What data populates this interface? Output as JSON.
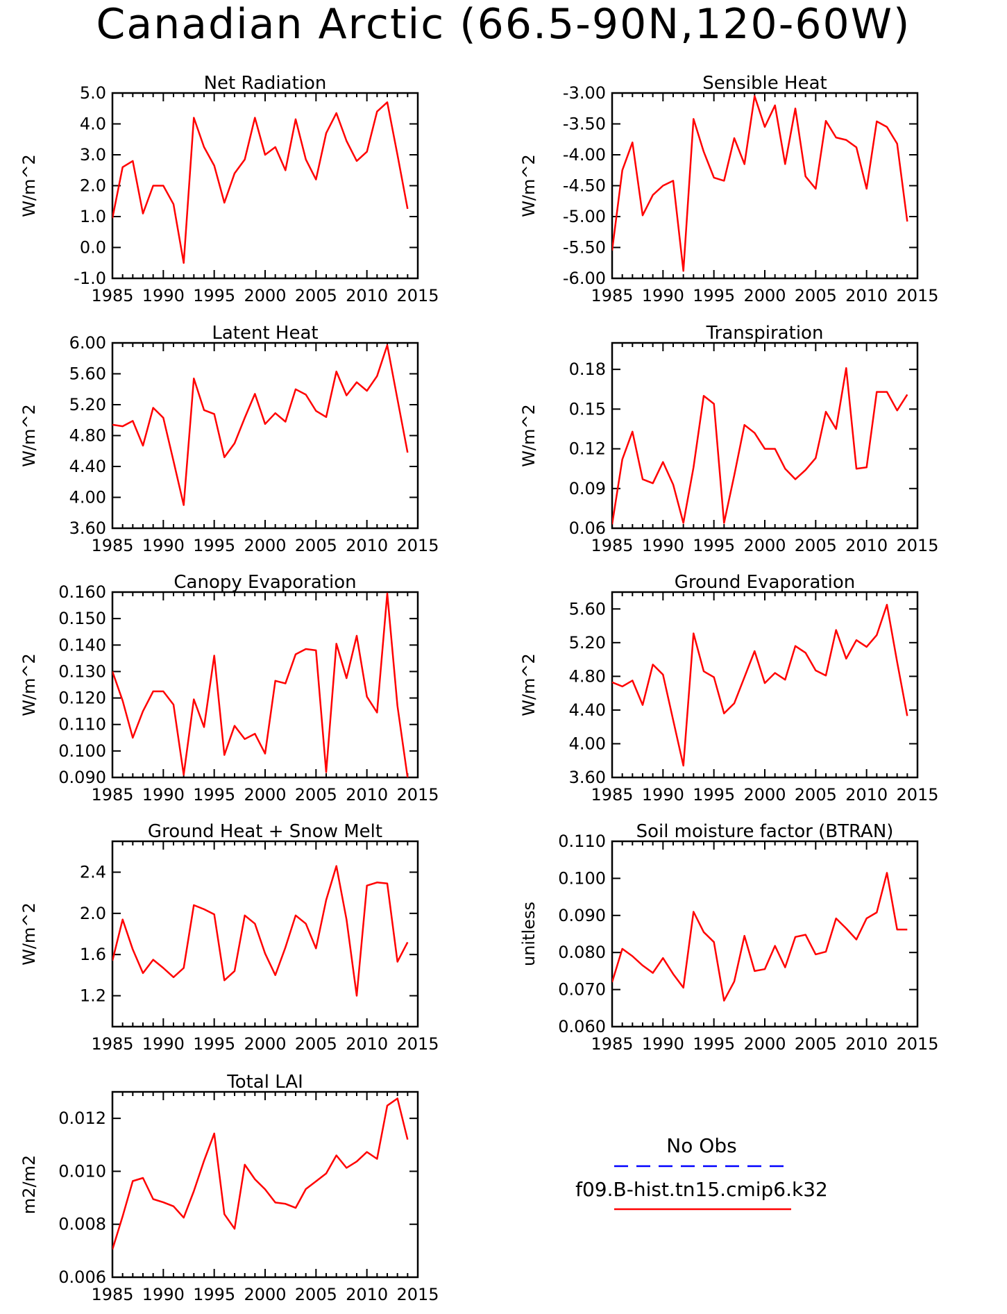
{
  "page_title": "Canadian Arctic (66.5-90N,120-60W)",
  "colors": {
    "model_line": "#ff0000",
    "obs_line": "#0000ff",
    "axis": "#000000"
  },
  "legend": {
    "entries": [
      {
        "label": "No Obs",
        "color": "#0000ff",
        "style": "dashed"
      },
      {
        "label": "f09.B-hist.tn15.cmip6.k32",
        "color": "#ff0000",
        "style": "solid"
      }
    ]
  },
  "chart_data": [
    {
      "type": "line",
      "title": "Net Radiation",
      "ylabel": "W/m^2",
      "xlim": [
        1985,
        2015
      ],
      "ylim": [
        -1.0,
        5.0
      ],
      "xticks": [
        1985,
        1990,
        1995,
        2000,
        2005,
        2010,
        2015
      ],
      "yticks": [
        "-1.0",
        "0.0",
        "1.0",
        "2.0",
        "3.0",
        "4.0",
        "5.0"
      ],
      "series": [
        {
          "x": [
            1985,
            1986,
            1987,
            1988,
            1989,
            1990,
            1991,
            1992,
            1993,
            1994,
            1995,
            1996,
            1997,
            1998,
            1999,
            2000,
            2001,
            2002,
            2003,
            2004,
            2005,
            2006,
            2007,
            2008,
            2009,
            2010,
            2011,
            2012,
            2013,
            2014
          ],
          "y": [
            0.95,
            2.6,
            2.8,
            1.1,
            2.0,
            2.0,
            1.4,
            -0.5,
            4.2,
            3.25,
            2.65,
            1.45,
            2.4,
            2.85,
            4.2,
            3.0,
            3.25,
            2.5,
            4.15,
            2.85,
            2.2,
            3.7,
            4.35,
            3.45,
            2.8,
            3.1,
            4.4,
            4.7,
            3.0,
            1.25
          ]
        }
      ]
    },
    {
      "type": "line",
      "title": "Sensible Heat",
      "ylabel": "W/m^2",
      "xlim": [
        1985,
        2015
      ],
      "ylim": [
        -6.0,
        -3.0
      ],
      "xticks": [
        1985,
        1990,
        1995,
        2000,
        2005,
        2010,
        2015
      ],
      "yticks": [
        "-6.00",
        "-5.50",
        "-5.00",
        "-4.50",
        "-4.00",
        "-3.50",
        "-3.00"
      ],
      "series": [
        {
          "x": [
            1985,
            1986,
            1987,
            1988,
            1989,
            1990,
            1991,
            1992,
            1993,
            1994,
            1995,
            1996,
            1997,
            1998,
            1999,
            2000,
            2001,
            2002,
            2003,
            2004,
            2005,
            2006,
            2007,
            2008,
            2009,
            2010,
            2011,
            2012,
            2013,
            2014
          ],
          "y": [
            -5.55,
            -4.25,
            -3.8,
            -4.98,
            -4.65,
            -4.5,
            -4.42,
            -5.88,
            -3.42,
            -3.95,
            -4.37,
            -4.42,
            -3.73,
            -4.15,
            -3.05,
            -3.55,
            -3.2,
            -4.15,
            -3.25,
            -4.35,
            -4.55,
            -3.45,
            -3.72,
            -3.76,
            -3.88,
            -4.55,
            -3.46,
            -3.55,
            -3.82,
            -5.08
          ]
        }
      ]
    },
    {
      "type": "line",
      "title": "Latent Heat",
      "ylabel": "W/m^2",
      "xlim": [
        1985,
        2015
      ],
      "ylim": [
        3.6,
        6.0
      ],
      "xticks": [
        1985,
        1990,
        1995,
        2000,
        2005,
        2010,
        2015
      ],
      "yticks": [
        "3.60",
        "4.00",
        "4.40",
        "4.80",
        "5.20",
        "5.60",
        "6.00"
      ],
      "series": [
        {
          "x": [
            1985,
            1986,
            1987,
            1988,
            1989,
            1990,
            1991,
            1992,
            1993,
            1994,
            1995,
            1996,
            1997,
            1998,
            1999,
            2000,
            2001,
            2002,
            2003,
            2004,
            2005,
            2006,
            2007,
            2008,
            2009,
            2010,
            2011,
            2012,
            2013,
            2014
          ],
          "y": [
            4.94,
            4.92,
            4.99,
            4.67,
            5.16,
            5.03,
            4.47,
            3.9,
            5.54,
            5.13,
            5.08,
            4.52,
            4.7,
            5.03,
            5.34,
            4.95,
            5.09,
            4.98,
            5.4,
            5.33,
            5.12,
            5.04,
            5.63,
            5.32,
            5.49,
            5.38,
            5.57,
            5.97,
            5.27,
            4.58
          ]
        }
      ]
    },
    {
      "type": "line",
      "title": "Transpiration",
      "ylabel": "W/m^2",
      "xlim": [
        1985,
        2015
      ],
      "ylim": [
        0.06,
        0.2
      ],
      "xticks": [
        1985,
        1990,
        1995,
        2000,
        2005,
        2010,
        2015
      ],
      "yticks": [
        "0.06",
        "0.09",
        "0.12",
        "0.15",
        "0.18"
      ],
      "series": [
        {
          "x": [
            1985,
            1986,
            1987,
            1988,
            1989,
            1990,
            1991,
            1992,
            1993,
            1994,
            1995,
            1996,
            1997,
            1998,
            1999,
            2000,
            2001,
            2002,
            2003,
            2004,
            2005,
            2006,
            2007,
            2008,
            2009,
            2010,
            2011,
            2012,
            2013,
            2014
          ],
          "y": [
            0.063,
            0.112,
            0.133,
            0.097,
            0.094,
            0.11,
            0.093,
            0.064,
            0.106,
            0.16,
            0.154,
            0.064,
            0.1,
            0.138,
            0.132,
            0.12,
            0.12,
            0.105,
            0.097,
            0.104,
            0.113,
            0.148,
            0.135,
            0.181,
            0.105,
            0.106,
            0.163,
            0.163,
            0.149,
            0.161
          ]
        }
      ]
    },
    {
      "type": "line",
      "title": "Canopy Evaporation",
      "ylabel": "W/m^2",
      "xlim": [
        1985,
        2015
      ],
      "ylim": [
        0.09,
        0.16
      ],
      "xticks": [
        1985,
        1990,
        1995,
        2000,
        2005,
        2010,
        2015
      ],
      "yticks": [
        "0.090",
        "0.100",
        "0.110",
        "0.120",
        "0.130",
        "0.140",
        "0.150",
        "0.160"
      ],
      "series": [
        {
          "x": [
            1985,
            1986,
            1987,
            1988,
            1989,
            1990,
            1991,
            1992,
            1993,
            1994,
            1995,
            1996,
            1997,
            1998,
            1999,
            2000,
            2001,
            2002,
            2003,
            2004,
            2005,
            2006,
            2007,
            2008,
            2009,
            2010,
            2011,
            2012,
            2013,
            2014
          ],
          "y": [
            0.13,
            0.119,
            0.105,
            0.115,
            0.1225,
            0.1225,
            0.1175,
            0.091,
            0.1195,
            0.109,
            0.136,
            0.0985,
            0.1095,
            0.1045,
            0.1065,
            0.099,
            0.1265,
            0.1255,
            0.1365,
            0.1385,
            0.138,
            0.092,
            0.1405,
            0.1275,
            0.1435,
            0.1205,
            0.1145,
            0.1595,
            0.117,
            0.09
          ]
        }
      ]
    },
    {
      "type": "line",
      "title": "Ground Evaporation",
      "ylabel": "W/m^2",
      "xlim": [
        1985,
        2015
      ],
      "ylim": [
        3.6,
        5.8
      ],
      "xticks": [
        1985,
        1990,
        1995,
        2000,
        2005,
        2010,
        2015
      ],
      "yticks": [
        "3.60",
        "4.00",
        "4.40",
        "4.80",
        "5.20",
        "5.60"
      ],
      "series": [
        {
          "x": [
            1985,
            1986,
            1987,
            1988,
            1989,
            1990,
            1991,
            1992,
            1993,
            1994,
            1995,
            1996,
            1997,
            1998,
            1999,
            2000,
            2001,
            2002,
            2003,
            2004,
            2005,
            2006,
            2007,
            2008,
            2009,
            2010,
            2011,
            2012,
            2013,
            2014
          ],
          "y": [
            4.73,
            4.68,
            4.75,
            4.46,
            4.94,
            4.82,
            4.28,
            3.74,
            5.31,
            4.86,
            4.79,
            4.36,
            4.48,
            4.79,
            5.1,
            4.72,
            4.84,
            4.76,
            5.16,
            5.08,
            4.87,
            4.81,
            5.35,
            5.01,
            5.23,
            5.15,
            5.29,
            5.65,
            4.97,
            4.33
          ]
        }
      ]
    },
    {
      "type": "line",
      "title": "Ground Heat + Snow Melt",
      "ylabel": "W/m^2",
      "xlim": [
        1985,
        2015
      ],
      "ylim": [
        0.9,
        2.7
      ],
      "xticks": [
        1985,
        1990,
        1995,
        2000,
        2005,
        2010,
        2015
      ],
      "yticks": [
        "1.2",
        "1.6",
        "2.0",
        "2.4"
      ],
      "series": [
        {
          "x": [
            1985,
            1986,
            1987,
            1988,
            1989,
            1990,
            1991,
            1992,
            1993,
            1994,
            1995,
            1996,
            1997,
            1998,
            1999,
            2000,
            2001,
            2002,
            2003,
            2004,
            2005,
            2006,
            2007,
            2008,
            2009,
            2010,
            2011,
            2012,
            2013,
            2014
          ],
          "y": [
            1.54,
            1.94,
            1.65,
            1.42,
            1.55,
            1.47,
            1.38,
            1.47,
            2.08,
            2.04,
            1.99,
            1.35,
            1.44,
            1.98,
            1.9,
            1.61,
            1.4,
            1.67,
            1.98,
            1.9,
            1.66,
            2.13,
            2.46,
            1.94,
            1.2,
            2.27,
            2.3,
            2.29,
            1.53,
            1.72
          ]
        }
      ]
    },
    {
      "type": "line",
      "title": "Soil moisture factor (BTRAN)",
      "ylabel": "unitless",
      "xlim": [
        1985,
        2015
      ],
      "ylim": [
        0.06,
        0.11
      ],
      "xticks": [
        1985,
        1990,
        1995,
        2000,
        2005,
        2010,
        2015
      ],
      "yticks": [
        "0.060",
        "0.070",
        "0.080",
        "0.090",
        "0.100",
        "0.110"
      ],
      "series": [
        {
          "x": [
            1985,
            1986,
            1987,
            1988,
            1989,
            1990,
            1991,
            1992,
            1993,
            1994,
            1995,
            1996,
            1997,
            1998,
            1999,
            2000,
            2001,
            2002,
            2003,
            2004,
            2005,
            2006,
            2007,
            2008,
            2009,
            2010,
            2011,
            2012,
            2013,
            2014
          ],
          "y": [
            0.072,
            0.081,
            0.079,
            0.0765,
            0.0745,
            0.0785,
            0.0742,
            0.0705,
            0.091,
            0.0855,
            0.0828,
            0.067,
            0.0722,
            0.0845,
            0.075,
            0.0755,
            0.0818,
            0.076,
            0.0842,
            0.0848,
            0.0795,
            0.0802,
            0.0892,
            0.0865,
            0.0835,
            0.0892,
            0.0908,
            0.1015,
            0.0862,
            0.0862
          ]
        }
      ]
    },
    {
      "type": "line",
      "title": "Total LAI",
      "ylabel": "m2/m2",
      "xlim": [
        1985,
        2015
      ],
      "ylim": [
        0.006,
        0.013
      ],
      "xticks": [
        1985,
        1990,
        1995,
        2000,
        2005,
        2010,
        2015
      ],
      "yticks": [
        "0.006",
        "0.008",
        "0.010",
        "0.012"
      ],
      "series": [
        {
          "x": [
            1985,
            1986,
            1987,
            1988,
            1989,
            1990,
            1991,
            1992,
            1993,
            1994,
            1995,
            1996,
            1997,
            1998,
            1999,
            2000,
            2001,
            2002,
            2003,
            2004,
            2005,
            2006,
            2007,
            2008,
            2009,
            2010,
            2011,
            2012,
            2013,
            2014
          ],
          "y": [
            0.00705,
            0.0083,
            0.00963,
            0.00975,
            0.00895,
            0.00883,
            0.00868,
            0.00825,
            0.00925,
            0.0104,
            0.01143,
            0.00838,
            0.00783,
            0.01025,
            0.0097,
            0.00932,
            0.00882,
            0.00877,
            0.00862,
            0.00933,
            0.00962,
            0.00992,
            0.0106,
            0.01013,
            0.01037,
            0.01073,
            0.01047,
            0.01248,
            0.01275,
            0.0112
          ]
        }
      ]
    }
  ]
}
